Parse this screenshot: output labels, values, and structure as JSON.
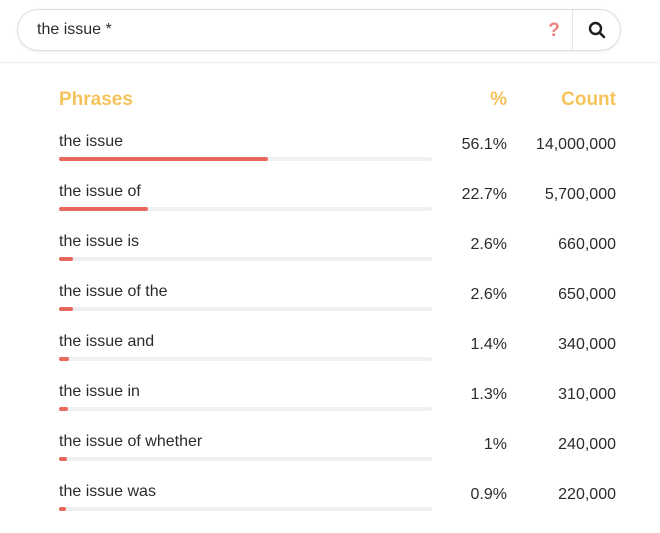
{
  "search": {
    "query": "the issue *",
    "help_glyph": "?"
  },
  "table": {
    "headers": {
      "phrase": "Phrases",
      "percent": "%",
      "count": "Count"
    },
    "rows": [
      {
        "phrase": "the issue",
        "percent": "56.1%",
        "count": "14,000,000",
        "share": 0.561
      },
      {
        "phrase": "the issue of",
        "percent": "22.7%",
        "count": "5,700,000",
        "share": 0.239
      },
      {
        "phrase": "the issue is",
        "percent": "2.6%",
        "count": "660,000",
        "share": 0.037
      },
      {
        "phrase": "the issue of the",
        "percent": "2.6%",
        "count": "650,000",
        "share": 0.037
      },
      {
        "phrase": "the issue and",
        "percent": "1.4%",
        "count": "340,000",
        "share": 0.026
      },
      {
        "phrase": "the issue in",
        "percent": "1.3%",
        "count": "310,000",
        "share": 0.024
      },
      {
        "phrase": "the issue of whether",
        "percent": "1%",
        "count": "240,000",
        "share": 0.021
      },
      {
        "phrase": "the issue was",
        "percent": "0.9%",
        "count": "220,000",
        "share": 0.02
      }
    ]
  },
  "colors": {
    "accent_header": "#f6c35b",
    "bar_fill": "#e8675f",
    "help_icon": "#e9857d"
  },
  "icons": {
    "help": "question-mark-icon",
    "search": "search-icon"
  }
}
